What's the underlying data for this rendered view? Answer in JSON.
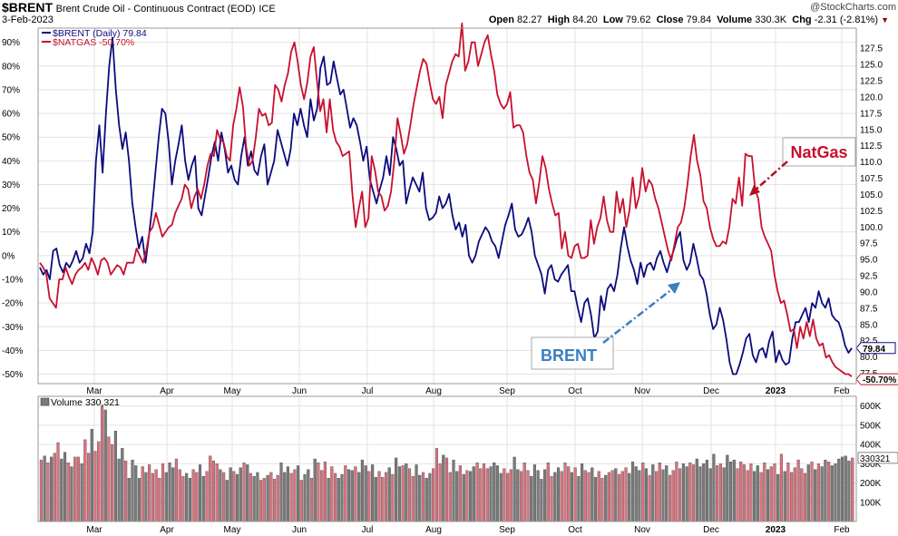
{
  "header": {
    "symbol": "$BRENT",
    "description": "Brent Crude Oil - Continuous Contract (EOD)",
    "exchange": "ICE",
    "date": "3-Feb-2023",
    "brand": "@StockCharts.com",
    "open_label": "Open",
    "open": "82.27",
    "high_label": "High",
    "high": "84.20",
    "low_label": "Low",
    "low": "79.62",
    "close_label": "Close",
    "close": "79.84",
    "volume_label": "Volume",
    "volume": "330.3K",
    "chg_label": "Chg",
    "chg": "-2.31 (-2.81%)"
  },
  "colors": {
    "brent": "#0b0b7e",
    "natgas": "#c8102e",
    "vol_up": "#d9737f",
    "vol_down": "#7a7a7a",
    "grid": "#e3e3e3",
    "natgas_ann": "#c8102e",
    "brent_ann": "#3a7fc0"
  },
  "chart_data": [
    {
      "type": "line",
      "legend": [
        "$BRENT (Daily) 79.84",
        "$NATGAS -50.70%"
      ],
      "legend_placement": "top-left",
      "x_tick_labels": [
        "Mar",
        "Apr",
        "May",
        "Jun",
        "Jul",
        "Aug",
        "Sep",
        "Oct",
        "Nov",
        "Dec",
        "2023",
        "Feb"
      ],
      "left_axis": {
        "ticks": [
          90,
          80,
          70,
          60,
          50,
          40,
          30,
          20,
          10,
          0,
          -10,
          -20,
          -30,
          -40,
          -50
        ],
        "tick_labels": [
          "90%",
          "80%",
          "70%",
          "60%",
          "50%",
          "40%",
          "30%",
          "20%",
          "10%",
          "0%",
          "-10%",
          "-20%",
          "-30%",
          "-40%",
          "-50%"
        ],
        "range": [
          -54,
          96
        ]
      },
      "right_axis": {
        "ticks": [
          127.5,
          125,
          122.5,
          120,
          117.5,
          115,
          112.5,
          110,
          107.5,
          105,
          102.5,
          100,
          97.5,
          95,
          92.5,
          90,
          87.5,
          85,
          82.5,
          80,
          77.5
        ],
        "tick_labels": [
          "127.5",
          "125.0",
          "122.5",
          "120.0",
          "117.5",
          "115.0",
          "112.5",
          "110.0",
          "107.5",
          "105.0",
          "102.5",
          "100.0",
          "97.5",
          "95.0",
          "92.5",
          "90.0",
          "87.5",
          "85.0",
          "82.5",
          "80.0",
          "77.5"
        ],
        "range": [
          75.9,
          130.6
        ]
      },
      "grid": true,
      "series": [
        {
          "name": "$BRENT (Daily) 79.84",
          "axis": "percent",
          "end_label": "79.84",
          "values": [
            -5,
            -8,
            -6,
            -10,
            2,
            3,
            -4,
            -7,
            -3,
            -5,
            -2,
            2,
            -3,
            -1,
            5,
            1,
            10,
            40,
            55,
            35,
            60,
            80,
            92,
            70,
            55,
            45,
            52,
            40,
            22,
            12,
            3,
            8,
            -3,
            8,
            20,
            35,
            50,
            62,
            60,
            48,
            30,
            40,
            47,
            55,
            40,
            32,
            38,
            42,
            20,
            17,
            25,
            33,
            42,
            48,
            40,
            52,
            45,
            35,
            38,
            32,
            30,
            42,
            50,
            38,
            44,
            36,
            34,
            42,
            47,
            30,
            35,
            40,
            53,
            48,
            43,
            38,
            45,
            60,
            55,
            62,
            55,
            50,
            66,
            57,
            62,
            79,
            84,
            72,
            73,
            82,
            75,
            68,
            70,
            62,
            54,
            58,
            55,
            48,
            40,
            46,
            32,
            27,
            22,
            28,
            33,
            42,
            34,
            50,
            45,
            38,
            40,
            22,
            28,
            33,
            30,
            27,
            35,
            20,
            15,
            16,
            18,
            25,
            20,
            22,
            26,
            17,
            11,
            14,
            8,
            13,
            0,
            -3,
            0,
            6,
            9,
            12,
            10,
            6,
            4,
            -1,
            6,
            13,
            17,
            22,
            11,
            8,
            9,
            12,
            16,
            10,
            0,
            -4,
            -8,
            -16,
            -6,
            -4,
            -10,
            -11,
            -8,
            -6,
            -4,
            -15,
            -15,
            -22,
            -28,
            -20,
            -18,
            -25,
            -35,
            -32,
            -17,
            -23,
            -14,
            -12,
            -15,
            -8,
            3,
            12,
            4,
            -2,
            -6,
            -12,
            -3,
            -9,
            -4,
            -3,
            -6,
            -1,
            2,
            -3,
            -7,
            -2,
            2,
            7,
            10,
            -2,
            -6,
            -3,
            5,
            -1,
            -8,
            -10,
            -16,
            -25,
            -31,
            -29,
            -22,
            -27,
            -35,
            -45,
            -50,
            -50,
            -46,
            -41,
            -35,
            -33,
            -42,
            -45,
            -40,
            -39,
            -43,
            -36,
            -32,
            -45,
            -40,
            -44,
            -46,
            -45,
            -35,
            -28,
            -28,
            -25,
            -22,
            -28,
            -20,
            -22,
            -15,
            -20,
            -22,
            -18,
            -25,
            -27,
            -28,
            -32,
            -38,
            -41,
            -39
          ]
        },
        {
          "name": "$NATGAS -50.70%",
          "axis": "percent",
          "end_label": "-50.70%",
          "values": [
            -3,
            -5,
            -8,
            -18,
            -20,
            -22,
            -10,
            -10,
            -5,
            -9,
            -12,
            -8,
            -6,
            -5,
            -3,
            -6,
            -1,
            -4,
            -8,
            -2,
            -1,
            -3,
            -8,
            -6,
            -4,
            -5,
            -8,
            -3,
            -3,
            -3,
            3,
            0,
            -3,
            2,
            10,
            12,
            18,
            13,
            8,
            10,
            12,
            13,
            18,
            21,
            24,
            30,
            28,
            20,
            25,
            28,
            24,
            30,
            38,
            43,
            42,
            53,
            49,
            48,
            42,
            40,
            55,
            62,
            71,
            63,
            46,
            38,
            40,
            50,
            62,
            59,
            60,
            55,
            56,
            72,
            70,
            65,
            72,
            77,
            86,
            90,
            82,
            72,
            66,
            73,
            84,
            88,
            74,
            61,
            66,
            52,
            66,
            53,
            48,
            46,
            42,
            43,
            44,
            26,
            12,
            20,
            27,
            12,
            16,
            42,
            36,
            27,
            25,
            19,
            21,
            27,
            40,
            58,
            51,
            43,
            47,
            55,
            64,
            71,
            78,
            83,
            81,
            73,
            66,
            64,
            67,
            58,
            72,
            77,
            82,
            85,
            84,
            98,
            78,
            82,
            90,
            90,
            80,
            85,
            90,
            93,
            85,
            78,
            68,
            64,
            62,
            64,
            69,
            54,
            55,
            55,
            52,
            42,
            35,
            32,
            22,
            31,
            42,
            37,
            28,
            22,
            17,
            18,
            3,
            10,
            0,
            -1,
            4,
            5,
            -1,
            -1,
            0,
            15,
            5,
            12,
            16,
            25,
            15,
            10,
            10,
            27,
            18,
            24,
            12,
            19,
            33,
            20,
            25,
            37,
            27,
            32,
            30,
            24,
            20,
            14,
            8,
            2,
            -2,
            5,
            12,
            14,
            20,
            30,
            42,
            51,
            40,
            34,
            23,
            20,
            12,
            7,
            4,
            4,
            6,
            5,
            12,
            24,
            22,
            33,
            21,
            43,
            42,
            42,
            28,
            24,
            12,
            8,
            5,
            2,
            -8,
            -15,
            -20,
            -19,
            -25,
            -32,
            -31,
            -39,
            -30,
            -35,
            -28,
            -34,
            -27,
            -35,
            -38,
            -37,
            -43,
            -42,
            -45,
            -47,
            -48,
            -49,
            -50,
            -50,
            -51
          ]
        }
      ],
      "annotations": [
        {
          "text": "NatGas"
        },
        {
          "text": "BRENT"
        }
      ]
    },
    {
      "type": "bar",
      "legend": [
        "Volume 330,321"
      ],
      "y_tick_labels": [
        "600K",
        "500K",
        "400K",
        "300K",
        "200K",
        "100K"
      ],
      "y_ticks": [
        600000,
        500000,
        400000,
        300000,
        200000,
        100000
      ],
      "ylim": [
        0,
        650000
      ],
      "last_value_label": "330321",
      "x_tick_labels": [
        "Mar",
        "Apr",
        "May",
        "Jun",
        "Jul",
        "Aug",
        "Sep",
        "Oct",
        "Nov",
        "Dec",
        "2023",
        "Feb"
      ],
      "values": [
        320000,
        340000,
        305000,
        335000,
        355000,
        410000,
        325000,
        360000,
        305000,
        285000,
        335000,
        335000,
        300000,
        425000,
        355000,
        480000,
        365000,
        415000,
        600000,
        580000,
        440000,
        400000,
        470000,
        325000,
        380000,
        315000,
        225000,
        320000,
        290000,
        225000,
        285000,
        255000,
        295000,
        250000,
        270000,
        225000,
        300000,
        255000,
        305000,
        280000,
        325000,
        270000,
        235000,
        250000,
        225000,
        270000,
        255000,
        295000,
        235000,
        260000,
        340000,
        315000,
        300000,
        270000,
        255000,
        215000,
        280000,
        260000,
        245000,
        280000,
        305000,
        295000,
        250000,
        235000,
        255000,
        215000,
        225000,
        240000,
        255000,
        220000,
        240000,
        305000,
        255000,
        285000,
        250000,
        270000,
        290000,
        215000,
        245000,
        270000,
        225000,
        325000,
        305000,
        265000,
        310000,
        225000,
        285000,
        250000,
        225000,
        245000,
        290000,
        270000,
        265000,
        285000,
        255000,
        320000,
        290000,
        260000,
        295000,
        230000,
        260000,
        230000,
        255000,
        280000,
        245000,
        330000,
        285000,
        290000,
        300000,
        275000,
        235000,
        295000,
        240000,
        255000,
        225000,
        250000,
        275000,
        380000,
        300000,
        345000,
        330000,
        255000,
        320000,
        260000,
        290000,
        245000,
        265000,
        260000,
        285000,
        305000,
        275000,
        300000,
        275000,
        285000,
        305000,
        290000,
        250000,
        275000,
        250000,
        270000,
        335000,
        270000,
        260000,
        305000,
        265000,
        235000,
        295000,
        265000,
        220000,
        270000,
        305000,
        235000,
        255000,
        280000,
        260000,
        305000,
        285000,
        255000,
        280000,
        235000,
        300000,
        265000,
        255000,
        280000,
        230000,
        260000,
        225000,
        240000,
        255000,
        265000,
        275000,
        245000,
        260000,
        280000,
        250000,
        310000,
        285000,
        265000,
        305000,
        275000,
        240000,
        295000,
        260000,
        305000,
        270000,
        290000,
        240000,
        265000,
        310000,
        275000,
        300000,
        285000,
        305000,
        295000,
        325000,
        285000,
        300000,
        320000,
        275000,
        350000,
        290000,
        300000,
        280000,
        345000,
        310000,
        320000,
        275000,
        310000,
        295000,
        265000,
        300000,
        260000,
        290000,
        255000,
        305000,
        270000,
        285000,
        300000,
        245000,
        350000,
        260000,
        305000,
        255000,
        280000,
        320000,
        275000,
        250000,
        295000,
        310000,
        270000,
        300000,
        285000,
        320000,
        310000,
        290000,
        300000,
        325000,
        335000,
        340000,
        315000,
        330321
      ]
    }
  ]
}
